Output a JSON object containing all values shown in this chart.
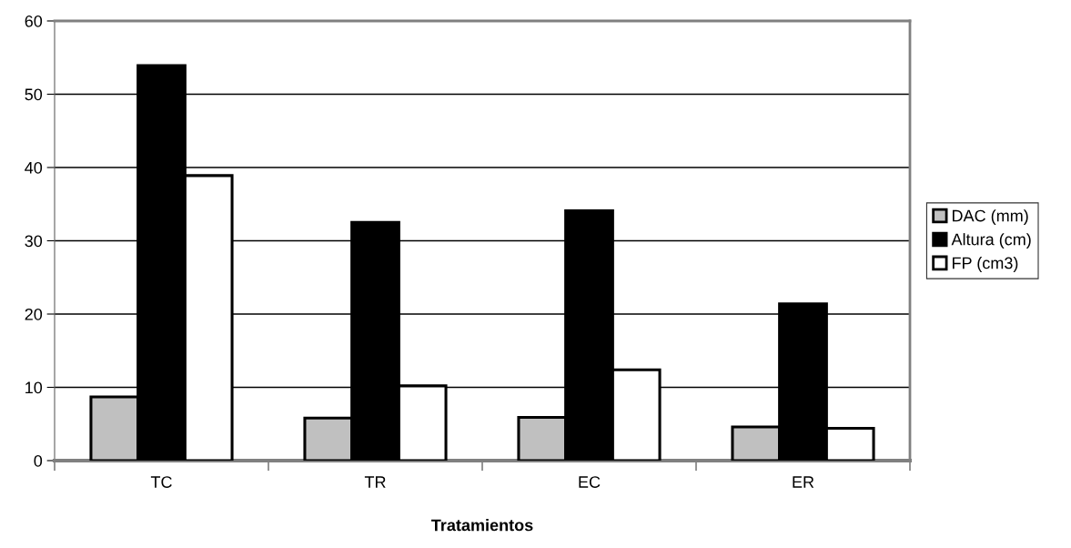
{
  "chart_data": {
    "type": "bar",
    "xlabel": "Tratamientos",
    "categories": [
      "TC",
      "TR",
      "EC",
      "ER"
    ],
    "series": [
      {
        "name": "DAC (mm)",
        "color": "#c0c0c0",
        "values": [
          8.7,
          5.8,
          5.9,
          4.6
        ]
      },
      {
        "name": "Altura (cm)",
        "color": "#000000",
        "values": [
          53.9,
          32.5,
          34.1,
          21.4
        ]
      },
      {
        "name": "FP (cm3)",
        "color": "#ffffff",
        "values": [
          38.9,
          10.2,
          12.4,
          4.4
        ]
      }
    ],
    "ylim": [
      0,
      60
    ],
    "yticks": [
      0,
      10,
      20,
      30,
      40,
      50,
      60
    ],
    "grid": "y",
    "legend": "right"
  }
}
